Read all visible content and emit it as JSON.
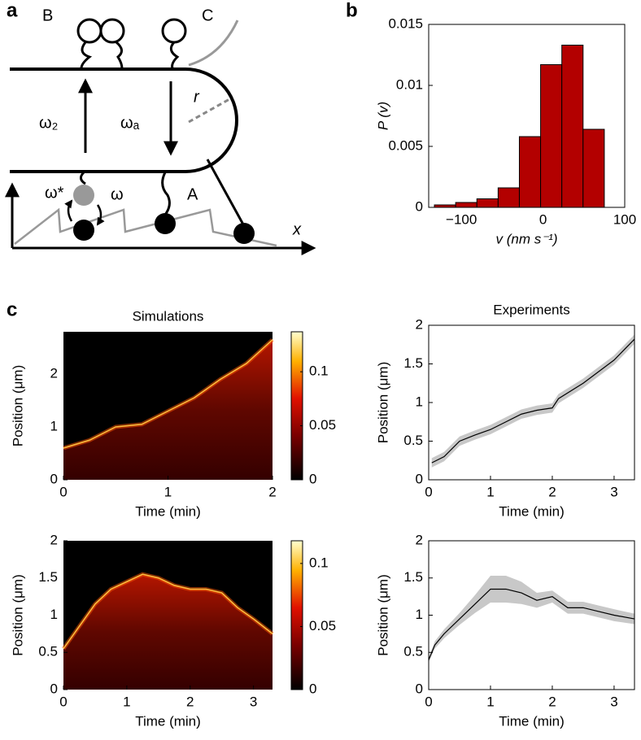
{
  "panel_labels": [
    "a",
    "b",
    "c"
  ],
  "diagram": {
    "labels": [
      "B",
      "C",
      "ω₂",
      "ωₐ",
      "r",
      "ω*",
      "ω",
      "A",
      "x"
    ]
  },
  "chart_data": [
    {
      "type": "histogram",
      "xlabel": "v (nm s⁻¹)",
      "ylabel": "P (v)",
      "bins": [
        -133,
        -107,
        -81,
        -55,
        -29,
        -3,
        23,
        49,
        75
      ],
      "values": [
        0.0002,
        0.0004,
        0.0007,
        0.0016,
        0.0058,
        0.0117,
        0.0133,
        0.0064
      ],
      "color": "#b30000",
      "xlim": [
        -140,
        100
      ],
      "xticks": [
        {
          "value": -100,
          "label": "−100"
        },
        0,
        100
      ],
      "ylim": [
        0,
        0.015
      ],
      "yticks": [
        0,
        0.005,
        0.01,
        0.015
      ]
    },
    {
      "type": "kymograph",
      "title": "Simulations",
      "xlabel": "Time (min)",
      "ylabel": "Position (μm)",
      "x": [
        0,
        0.25,
        0.5,
        0.75,
        1,
        1.25,
        1.5,
        1.75,
        2
      ],
      "values": [
        0.6,
        0.75,
        1.0,
        1.05,
        1.3,
        1.55,
        1.9,
        2.2,
        2.65
      ],
      "xlim": [
        0,
        2
      ],
      "xticks": [
        0,
        1,
        2
      ],
      "ylim": [
        0,
        2.8
      ],
      "yticks": [
        0,
        1,
        2
      ],
      "clim": [
        0,
        0.137
      ],
      "cticks": [
        0,
        0.05,
        0.1
      ]
    },
    {
      "type": "line",
      "title": "Experiments",
      "xlabel": "Time (min)",
      "ylabel": "Position (μm)",
      "x": [
        0.05,
        0.25,
        0.5,
        0.75,
        1,
        1.25,
        1.5,
        1.75,
        2,
        2.1,
        2.5,
        2.75,
        3,
        3.33
      ],
      "values": [
        0.22,
        0.3,
        0.5,
        0.58,
        0.65,
        0.75,
        0.85,
        0.9,
        0.93,
        1.05,
        1.25,
        1.4,
        1.55,
        1.82
      ],
      "errors": [
        0.06,
        0.06,
        0.06,
        0.06,
        0.06,
        0.06,
        0.06,
        0.06,
        0.06,
        0.06,
        0.06,
        0.06,
        0.06,
        0.06
      ],
      "color": "#000000",
      "xlim": [
        0,
        3.33
      ],
      "xticks": [
        0,
        1,
        2,
        3
      ],
      "ylim": [
        0,
        2
      ],
      "yticks": [
        0,
        0.5,
        1,
        1.5,
        2
      ]
    },
    {
      "type": "kymograph",
      "xlabel": "Time (min)",
      "ylabel": "Position (μm)",
      "x": [
        0,
        0.25,
        0.5,
        0.75,
        1,
        1.25,
        1.5,
        1.75,
        2,
        2.25,
        2.5,
        2.75,
        3,
        3.3
      ],
      "values": [
        0.55,
        0.85,
        1.15,
        1.35,
        1.45,
        1.55,
        1.5,
        1.4,
        1.35,
        1.35,
        1.3,
        1.1,
        0.95,
        0.75
      ],
      "xlim": [
        0,
        3.3
      ],
      "xticks": [
        0,
        1,
        2,
        3
      ],
      "ylim": [
        0,
        2
      ],
      "yticks": [
        0,
        0.5,
        1,
        1.5,
        2
      ],
      "clim": [
        0,
        0.118
      ],
      "cticks": [
        0,
        0.05,
        0.1
      ]
    },
    {
      "type": "line",
      "xlabel": "Time (min)",
      "ylabel": "Position (μm)",
      "x": [
        0,
        0.1,
        0.25,
        0.5,
        0.75,
        1,
        1.25,
        1.5,
        1.75,
        2,
        2.25,
        2.5,
        2.75,
        3,
        3.33
      ],
      "values": [
        0.4,
        0.6,
        0.75,
        0.95,
        1.15,
        1.35,
        1.35,
        1.3,
        1.2,
        1.25,
        1.1,
        1.1,
        1.05,
        1.0,
        0.95
      ],
      "errors": [
        0.03,
        0.05,
        0.06,
        0.08,
        0.12,
        0.18,
        0.18,
        0.15,
        0.1,
        0.08,
        0.08,
        0.08,
        0.08,
        0.08,
        0.07
      ],
      "color": "#000000",
      "xlim": [
        0,
        3.33
      ],
      "xticks": [
        0,
        1,
        2,
        3
      ],
      "ylim": [
        0,
        2
      ],
      "yticks": [
        0,
        0.5,
        1,
        1.5,
        2
      ]
    }
  ]
}
